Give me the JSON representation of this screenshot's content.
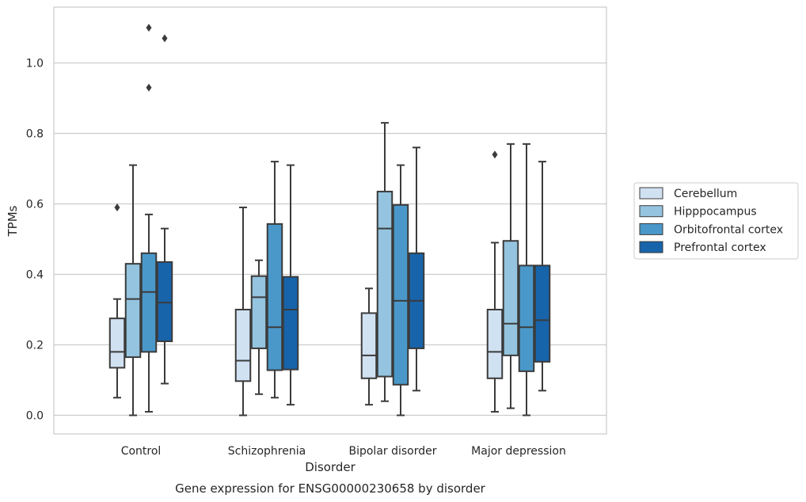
{
  "chart_data": {
    "type": "box",
    "title": "Gene expression for ENSG00000230658 by disorder",
    "xlabel": "Disorder",
    "ylabel": "TPMs",
    "ylim": [
      -0.053,
      1.16
    ],
    "yticks": [
      0.0,
      0.2,
      0.4,
      0.6,
      0.8,
      1.0
    ],
    "ytick_labels": [
      "0.0",
      "0.2",
      "0.4",
      "0.6",
      "0.8",
      "1.0"
    ],
    "grid": "horizontal",
    "legend_position": "right",
    "categories": [
      "Control",
      "Schizophrenia",
      "Bipolar disorder",
      "Major depression"
    ],
    "series": [
      {
        "name": "Cerebellum",
        "color": "#d0e1f2",
        "boxes": [
          {
            "whisker_low": 0.05,
            "q1": 0.135,
            "median": 0.18,
            "q3": 0.275,
            "whisker_high": 0.33,
            "outliers": [
              0.59
            ]
          },
          {
            "whisker_low": 0.0,
            "q1": 0.097,
            "median": 0.155,
            "q3": 0.3,
            "whisker_high": 0.59,
            "outliers": []
          },
          {
            "whisker_low": 0.03,
            "q1": 0.105,
            "median": 0.17,
            "q3": 0.29,
            "whisker_high": 0.36,
            "outliers": []
          },
          {
            "whisker_low": 0.01,
            "q1": 0.105,
            "median": 0.18,
            "q3": 0.3,
            "whisker_high": 0.49,
            "outliers": [
              0.74
            ]
          }
        ]
      },
      {
        "name": "Hipppocampus",
        "color": "#94c4df",
        "boxes": [
          {
            "whisker_low": 0.0,
            "q1": 0.165,
            "median": 0.33,
            "q3": 0.43,
            "whisker_high": 0.71,
            "outliers": []
          },
          {
            "whisker_low": 0.06,
            "q1": 0.19,
            "median": 0.335,
            "q3": 0.395,
            "whisker_high": 0.44,
            "outliers": []
          },
          {
            "whisker_low": 0.04,
            "q1": 0.11,
            "median": 0.53,
            "q3": 0.635,
            "whisker_high": 0.83,
            "outliers": []
          },
          {
            "whisker_low": 0.02,
            "q1": 0.17,
            "median": 0.26,
            "q3": 0.495,
            "whisker_high": 0.77,
            "outliers": []
          }
        ]
      },
      {
        "name": "Orbitofrontal cortex",
        "color": "#4a98c9",
        "boxes": [
          {
            "whisker_low": 0.01,
            "q1": 0.18,
            "median": 0.35,
            "q3": 0.46,
            "whisker_high": 0.57,
            "outliers": [
              0.93,
              1.1
            ]
          },
          {
            "whisker_low": 0.05,
            "q1": 0.128,
            "median": 0.25,
            "q3": 0.543,
            "whisker_high": 0.72,
            "outliers": []
          },
          {
            "whisker_low": 0.0,
            "q1": 0.087,
            "median": 0.325,
            "q3": 0.597,
            "whisker_high": 0.71,
            "outliers": []
          },
          {
            "whisker_low": 0.0,
            "q1": 0.125,
            "median": 0.25,
            "q3": 0.425,
            "whisker_high": 0.77,
            "outliers": []
          }
        ]
      },
      {
        "name": "Prefrontal cortex",
        "color": "#1764ab",
        "boxes": [
          {
            "whisker_low": 0.09,
            "q1": 0.21,
            "median": 0.32,
            "q3": 0.435,
            "whisker_high": 0.53,
            "outliers": [
              1.07
            ]
          },
          {
            "whisker_low": 0.03,
            "q1": 0.13,
            "median": 0.3,
            "q3": 0.393,
            "whisker_high": 0.71,
            "outliers": []
          },
          {
            "whisker_low": 0.07,
            "q1": 0.19,
            "median": 0.325,
            "q3": 0.46,
            "whisker_high": 0.76,
            "outliers": []
          },
          {
            "whisker_low": 0.07,
            "q1": 0.152,
            "median": 0.27,
            "q3": 0.425,
            "whisker_high": 0.72,
            "outliers": []
          }
        ]
      }
    ]
  }
}
